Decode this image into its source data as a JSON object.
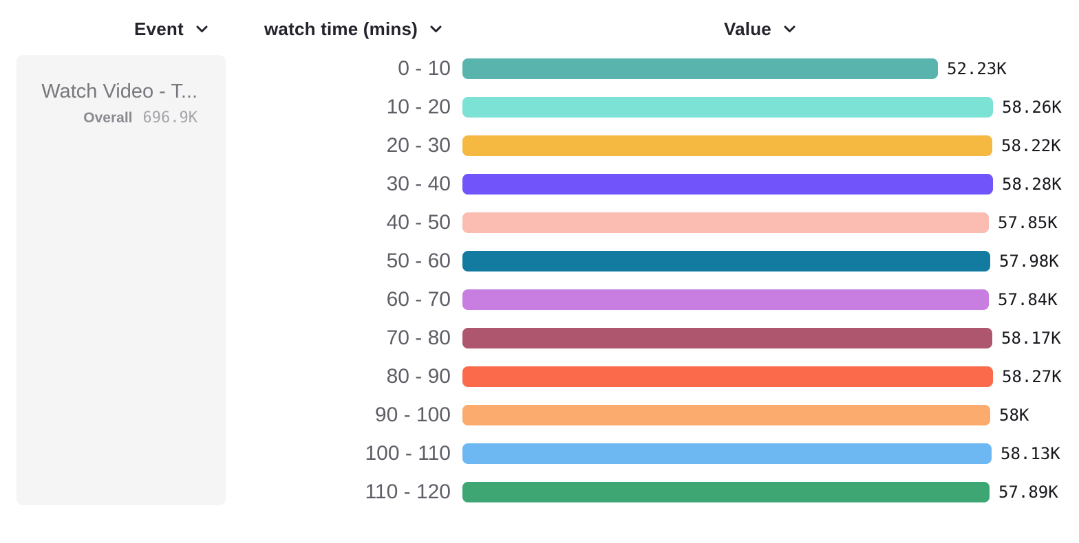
{
  "header": {
    "columns": [
      {
        "id": "event",
        "label": "Event",
        "icon": "chevron-down-icon"
      },
      {
        "id": "breakdown",
        "label": "watch time (mins)",
        "icon": "chevron-down-icon"
      },
      {
        "id": "value",
        "label": "Value",
        "icon": "chevron-down-icon"
      }
    ]
  },
  "event_card": {
    "title": "Watch Video - T...",
    "overall_label": "Overall",
    "overall_value": "696.9K"
  },
  "chart_data": {
    "type": "bar",
    "orientation": "horizontal",
    "title": "",
    "xlabel": "Value",
    "ylabel": "watch time (mins)",
    "grid": false,
    "xlim": [
      0,
      58280
    ],
    "categories": [
      "0 - 10",
      "10 - 20",
      "20 - 30",
      "30 - 40",
      "40 - 50",
      "50 - 60",
      "60 - 70",
      "70 - 80",
      "80 - 90",
      "90 - 100",
      "100 - 110",
      "110 - 120"
    ],
    "values": [
      52230,
      58260,
      58220,
      58280,
      57850,
      57980,
      57840,
      58170,
      58270,
      58000,
      58130,
      57890
    ],
    "value_labels": [
      "52.23K",
      "58.26K",
      "58.22K",
      "58.28K",
      "57.85K",
      "57.98K",
      "57.84K",
      "58.17K",
      "58.27K",
      "58K",
      "58.13K",
      "57.89K"
    ],
    "colors": [
      "#58b4ad",
      "#7de2d6",
      "#f5b942",
      "#7155fa",
      "#fbbcb2",
      "#137ba0",
      "#c77ee0",
      "#af566f",
      "#fa6a4b",
      "#fbab6e",
      "#6db8f2",
      "#3da673"
    ],
    "series_name": "Watch Video - Total",
    "overall_total": "696.9K",
    "value_label_position": "right",
    "legend_position": "left"
  },
  "colors": {
    "header_text": "#23232c",
    "category_label": "#5e5f66",
    "value_label": "#17171d",
    "card_background": "#f5f5f6",
    "card_title": "#77787d"
  }
}
